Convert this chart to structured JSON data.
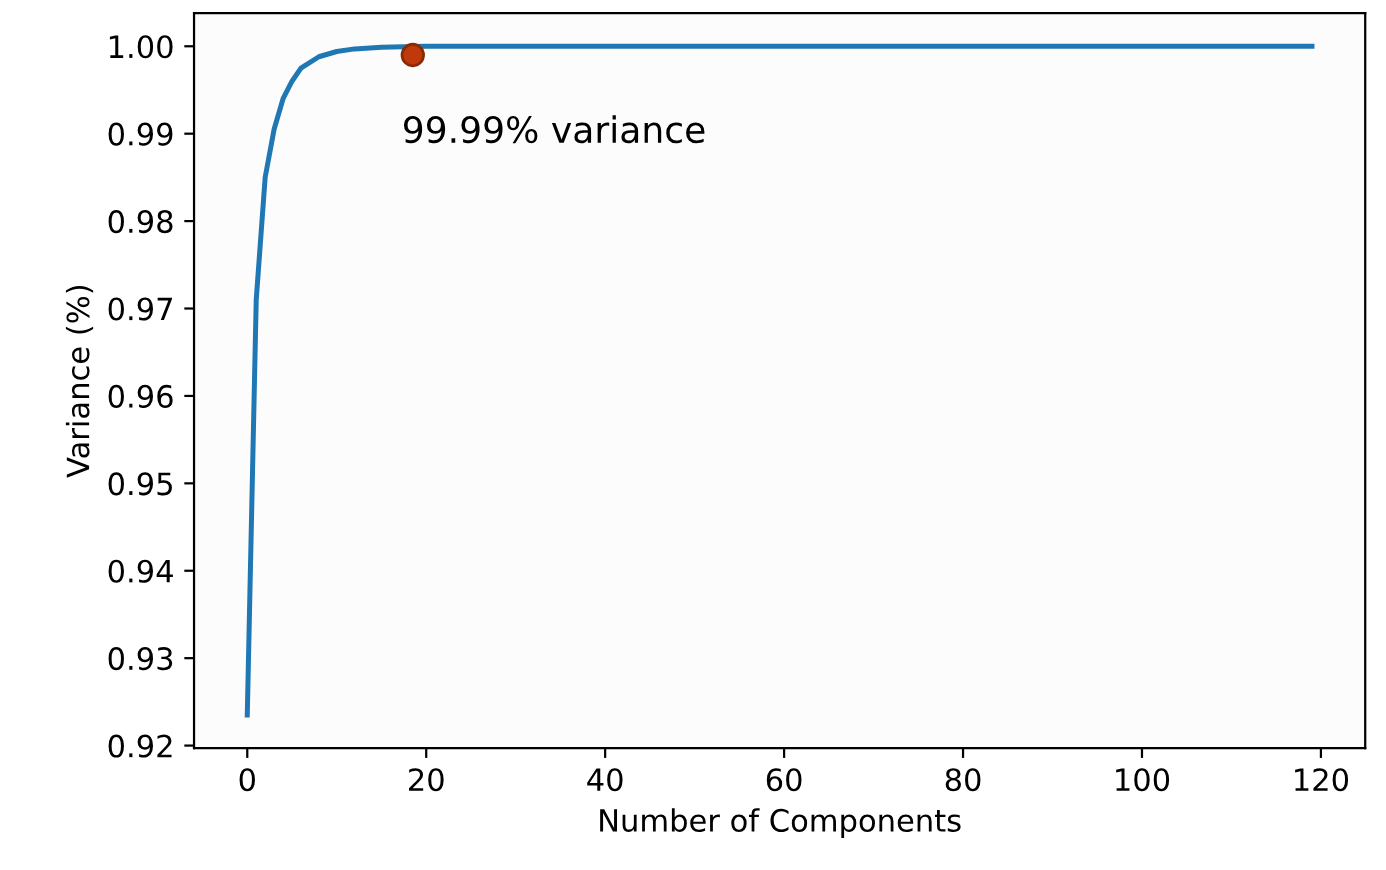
{
  "chart_data": {
    "type": "line",
    "xlabel": "Number of Components",
    "ylabel": "Variance (%)",
    "xlim": [
      -5.95,
      124.95
    ],
    "ylim": [
      0.9197,
      1.0038
    ],
    "xticks": [
      0,
      20,
      40,
      60,
      80,
      100,
      120
    ],
    "yticks": [
      {
        "value": 0.92,
        "label": "0.92"
      },
      {
        "value": 0.93,
        "label": "0.93"
      },
      {
        "value": 0.94,
        "label": "0.94"
      },
      {
        "value": 0.95,
        "label": "0.95"
      },
      {
        "value": 0.96,
        "label": "0.96"
      },
      {
        "value": 0.97,
        "label": "0.97"
      },
      {
        "value": 0.98,
        "label": "0.98"
      },
      {
        "value": 0.99,
        "label": "0.99"
      },
      {
        "value": 1.0,
        "label": "1.00"
      }
    ],
    "grid": false,
    "legend": false,
    "series": [
      {
        "color": "#1f77b4",
        "marker": "none",
        "x": [
          0,
          1,
          2,
          3,
          4,
          5,
          6,
          8,
          10,
          12,
          15,
          20,
          30,
          60,
          119
        ],
        "values": [
          0.9235,
          0.971,
          0.985,
          0.9905,
          0.994,
          0.996,
          0.9975,
          0.9988,
          0.9994,
          0.9997,
          0.9999,
          1.0,
          1.0,
          1.0,
          1.0
        ]
      },
      {
        "type": "scatter",
        "color": "#c0390b",
        "marker": "circle",
        "x": [
          18.5
        ],
        "values": [
          0.999
        ]
      }
    ],
    "annotations": [
      {
        "text": "99.99% variance",
        "x": 18.5,
        "y": 0.999
      }
    ]
  }
}
